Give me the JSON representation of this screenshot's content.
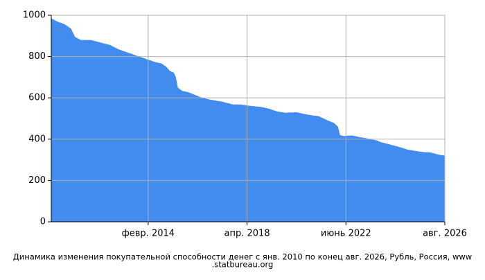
{
  "chart_data": {
    "type": "area",
    "title": [
      "Динамика изменения покупательной способности денег с янв. 2010 по конец авг. 2026, Рубль, Россия, www",
      ".statbureau.org"
    ],
    "color": "#428bef",
    "grid": true,
    "ylim": [
      0,
      1000
    ],
    "yticks": [
      0,
      200,
      400,
      600,
      800,
      1000
    ],
    "categories": [
      null,
      null,
      null,
      null,
      null,
      null,
      null,
      null,
      null,
      null,
      null,
      null,
      null,
      null,
      null,
      null,
      null,
      null,
      null,
      null,
      null,
      null,
      null,
      null,
      null,
      null,
      null,
      null,
      null,
      null,
      null,
      null,
      null,
      null,
      null,
      null,
      null,
      null,
      null,
      null,
      null,
      null,
      null,
      null,
      null,
      null,
      null,
      null,
      null,
      "февр. 2014",
      null,
      null,
      null,
      null,
      null,
      null,
      null,
      null,
      null,
      null,
      null,
      null,
      null,
      null,
      null,
      null,
      null,
      null,
      null,
      null,
      null,
      null,
      null,
      null,
      null,
      null,
      null,
      null,
      null,
      null,
      null,
      null,
      null,
      null,
      null,
      null,
      null,
      null,
      null,
      null,
      null,
      null,
      null,
      null,
      null,
      null,
      null,
      null,
      null,
      "апр. 2018",
      null,
      null,
      null,
      null,
      null,
      null,
      null,
      null,
      null,
      null,
      null,
      null,
      null,
      null,
      null,
      null,
      null,
      null,
      null,
      null,
      null,
      null,
      null,
      null,
      null,
      null,
      null,
      null,
      null,
      null,
      null,
      null,
      null,
      null,
      null,
      null,
      null,
      null,
      null,
      null,
      null,
      null,
      null,
      null,
      null,
      null,
      null,
      null,
      null,
      "июнь 2022",
      null,
      null,
      null,
      null,
      null,
      null,
      null,
      null,
      null,
      null,
      null,
      null,
      null,
      null,
      null,
      null,
      null,
      null,
      null,
      null,
      null,
      null,
      null,
      null,
      null,
      null,
      null,
      null,
      null,
      null,
      null,
      null,
      null,
      null,
      null,
      null,
      null,
      null,
      null,
      null,
      null,
      null,
      null,
      null,
      null,
      null,
      null,
      null,
      null,
      "авг. 2026"
    ],
    "values": [
      985,
      980,
      975,
      970,
      966,
      963,
      959,
      955,
      948,
      942,
      935,
      915,
      895,
      890,
      885,
      880,
      880,
      880,
      880,
      880,
      880,
      878,
      875,
      873,
      870,
      868,
      865,
      863,
      860,
      858,
      855,
      850,
      845,
      840,
      835,
      832,
      828,
      825,
      822,
      818,
      815,
      812,
      808,
      805,
      802,
      798,
      795,
      792,
      788,
      785,
      782,
      778,
      775,
      772,
      770,
      768,
      765,
      758,
      752,
      741,
      730,
      726,
      722,
      700,
      650,
      642,
      635,
      632,
      630,
      628,
      625,
      621,
      617,
      613,
      609,
      605,
      602,
      600,
      597,
      595,
      592,
      590,
      589,
      587,
      585,
      584,
      582,
      580,
      577,
      575,
      573,
      570,
      568,
      568,
      568,
      568,
      568,
      566,
      565,
      563,
      562,
      561,
      560,
      559,
      558,
      557,
      556,
      554,
      552,
      550,
      548,
      545,
      541,
      538,
      535,
      533,
      531,
      530,
      528,
      528,
      529,
      529,
      529,
      530,
      530,
      528,
      526,
      524,
      522,
      520,
      518,
      517,
      515,
      514,
      513,
      512,
      508,
      503,
      499,
      494,
      490,
      486,
      482,
      478,
      469,
      460,
      420,
      417,
      415,
      416,
      417,
      417,
      418,
      416,
      414,
      412,
      410,
      408,
      407,
      405,
      403,
      401,
      399,
      397,
      395,
      392,
      388,
      385,
      382,
      380,
      377,
      375,
      372,
      370,
      367,
      365,
      362,
      359,
      356,
      353,
      350,
      348,
      347,
      345,
      343,
      342,
      340,
      339,
      338,
      337,
      337,
      336,
      335,
      332,
      330,
      327,
      325,
      323,
      322,
      320
    ]
  }
}
